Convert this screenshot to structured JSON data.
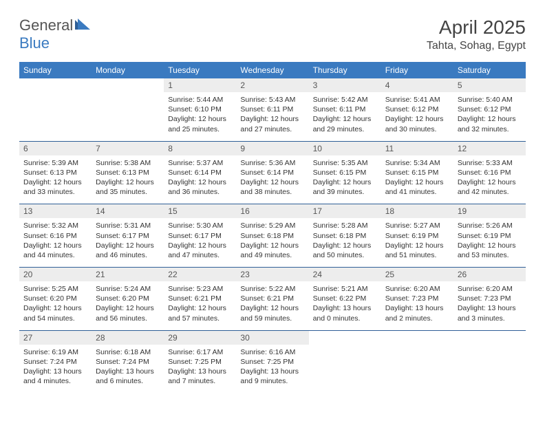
{
  "brand": {
    "part1": "General",
    "part2": "Blue"
  },
  "title": "April 2025",
  "location": "Tahta, Sohag, Egypt",
  "colors": {
    "header_bg": "#3a7ac0",
    "header_fg": "#ffffff",
    "daynum_bg": "#ededed",
    "text": "#333333",
    "rule": "#2e5e96"
  },
  "dow": [
    "Sunday",
    "Monday",
    "Tuesday",
    "Wednesday",
    "Thursday",
    "Friday",
    "Saturday"
  ],
  "weeks": [
    [
      null,
      null,
      {
        "n": "1",
        "sr": "5:44 AM",
        "ss": "6:10 PM",
        "dl": "12 hours and 25 minutes."
      },
      {
        "n": "2",
        "sr": "5:43 AM",
        "ss": "6:11 PM",
        "dl": "12 hours and 27 minutes."
      },
      {
        "n": "3",
        "sr": "5:42 AM",
        "ss": "6:11 PM",
        "dl": "12 hours and 29 minutes."
      },
      {
        "n": "4",
        "sr": "5:41 AM",
        "ss": "6:12 PM",
        "dl": "12 hours and 30 minutes."
      },
      {
        "n": "5",
        "sr": "5:40 AM",
        "ss": "6:12 PM",
        "dl": "12 hours and 32 minutes."
      }
    ],
    [
      {
        "n": "6",
        "sr": "5:39 AM",
        "ss": "6:13 PM",
        "dl": "12 hours and 33 minutes."
      },
      {
        "n": "7",
        "sr": "5:38 AM",
        "ss": "6:13 PM",
        "dl": "12 hours and 35 minutes."
      },
      {
        "n": "8",
        "sr": "5:37 AM",
        "ss": "6:14 PM",
        "dl": "12 hours and 36 minutes."
      },
      {
        "n": "9",
        "sr": "5:36 AM",
        "ss": "6:14 PM",
        "dl": "12 hours and 38 minutes."
      },
      {
        "n": "10",
        "sr": "5:35 AM",
        "ss": "6:15 PM",
        "dl": "12 hours and 39 minutes."
      },
      {
        "n": "11",
        "sr": "5:34 AM",
        "ss": "6:15 PM",
        "dl": "12 hours and 41 minutes."
      },
      {
        "n": "12",
        "sr": "5:33 AM",
        "ss": "6:16 PM",
        "dl": "12 hours and 42 minutes."
      }
    ],
    [
      {
        "n": "13",
        "sr": "5:32 AM",
        "ss": "6:16 PM",
        "dl": "12 hours and 44 minutes."
      },
      {
        "n": "14",
        "sr": "5:31 AM",
        "ss": "6:17 PM",
        "dl": "12 hours and 46 minutes."
      },
      {
        "n": "15",
        "sr": "5:30 AM",
        "ss": "6:17 PM",
        "dl": "12 hours and 47 minutes."
      },
      {
        "n": "16",
        "sr": "5:29 AM",
        "ss": "6:18 PM",
        "dl": "12 hours and 49 minutes."
      },
      {
        "n": "17",
        "sr": "5:28 AM",
        "ss": "6:18 PM",
        "dl": "12 hours and 50 minutes."
      },
      {
        "n": "18",
        "sr": "5:27 AM",
        "ss": "6:19 PM",
        "dl": "12 hours and 51 minutes."
      },
      {
        "n": "19",
        "sr": "5:26 AM",
        "ss": "6:19 PM",
        "dl": "12 hours and 53 minutes."
      }
    ],
    [
      {
        "n": "20",
        "sr": "5:25 AM",
        "ss": "6:20 PM",
        "dl": "12 hours and 54 minutes."
      },
      {
        "n": "21",
        "sr": "5:24 AM",
        "ss": "6:20 PM",
        "dl": "12 hours and 56 minutes."
      },
      {
        "n": "22",
        "sr": "5:23 AM",
        "ss": "6:21 PM",
        "dl": "12 hours and 57 minutes."
      },
      {
        "n": "23",
        "sr": "5:22 AM",
        "ss": "6:21 PM",
        "dl": "12 hours and 59 minutes."
      },
      {
        "n": "24",
        "sr": "5:21 AM",
        "ss": "6:22 PM",
        "dl": "13 hours and 0 minutes."
      },
      {
        "n": "25",
        "sr": "6:20 AM",
        "ss": "7:23 PM",
        "dl": "13 hours and 2 minutes."
      },
      {
        "n": "26",
        "sr": "6:20 AM",
        "ss": "7:23 PM",
        "dl": "13 hours and 3 minutes."
      }
    ],
    [
      {
        "n": "27",
        "sr": "6:19 AM",
        "ss": "7:24 PM",
        "dl": "13 hours and 4 minutes."
      },
      {
        "n": "28",
        "sr": "6:18 AM",
        "ss": "7:24 PM",
        "dl": "13 hours and 6 minutes."
      },
      {
        "n": "29",
        "sr": "6:17 AM",
        "ss": "7:25 PM",
        "dl": "13 hours and 7 minutes."
      },
      {
        "n": "30",
        "sr": "6:16 AM",
        "ss": "7:25 PM",
        "dl": "13 hours and 9 minutes."
      },
      null,
      null,
      null
    ]
  ],
  "labels": {
    "sunrise": "Sunrise:",
    "sunset": "Sunset:",
    "daylight": "Daylight:"
  }
}
